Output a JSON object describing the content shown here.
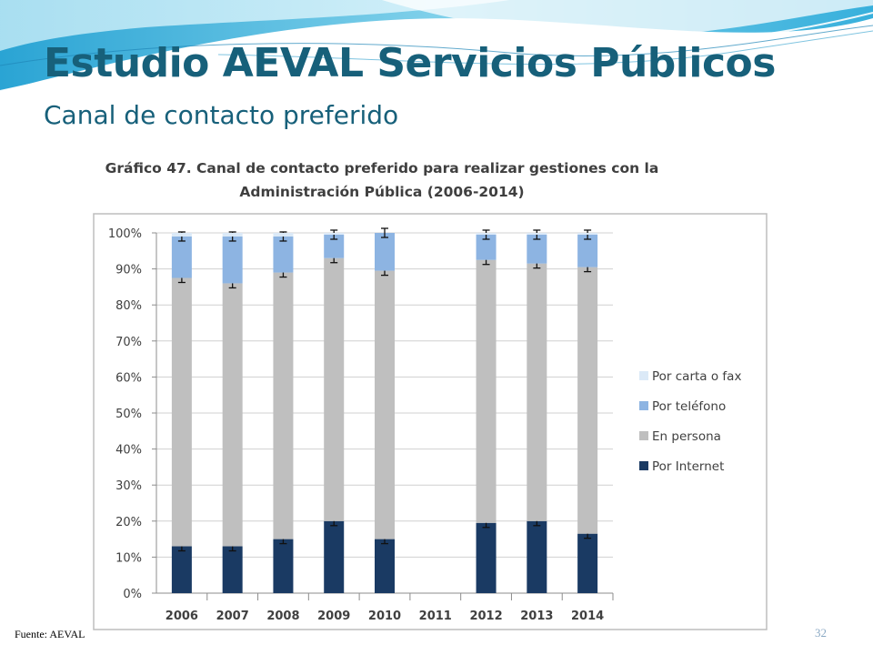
{
  "slide": {
    "title": "Estudio AEVAL Servicios Públicos",
    "subtitle": "Canal de contacto preferido",
    "source": "Fuente: AEVAL",
    "page_number": "32"
  },
  "colors": {
    "title": "#17607a",
    "internet": "#1a3a63",
    "persona": "#bfbfbf",
    "telefono": "#8db4e2",
    "carta": "#dbe9f7"
  },
  "chart_data": {
    "type": "bar",
    "stacked": true,
    "title_lines": [
      "Gráfico 47. Canal de contacto preferido para realizar gestiones con la",
      "Administración Pública (2006-2014)"
    ],
    "categories": [
      "2006",
      "2007",
      "2008",
      "2009",
      "2010",
      "2011",
      "2012",
      "2013",
      "2014"
    ],
    "y_ticks": [
      "0%",
      "10%",
      "20%",
      "30%",
      "40%",
      "50%",
      "60%",
      "70%",
      "80%",
      "90%",
      "100%"
    ],
    "ylim": [
      0,
      100
    ],
    "grid": true,
    "legend_position": "right",
    "error_bars": true,
    "series": [
      {
        "name": "Por Internet",
        "values": [
          13,
          13,
          15,
          20,
          15,
          null,
          19.5,
          20,
          16.5
        ]
      },
      {
        "name": "En persona",
        "values": [
          74.5,
          73,
          74,
          73,
          74.5,
          null,
          73,
          71.5,
          74
        ]
      },
      {
        "name": "Por teléfono",
        "values": [
          11.5,
          13,
          10,
          6.5,
          10.5,
          null,
          7,
          8,
          9
        ]
      },
      {
        "name": "Por carta o fax",
        "values": [
          1,
          1,
          1,
          0.5,
          0,
          null,
          0.5,
          0.5,
          0.5
        ]
      }
    ]
  }
}
